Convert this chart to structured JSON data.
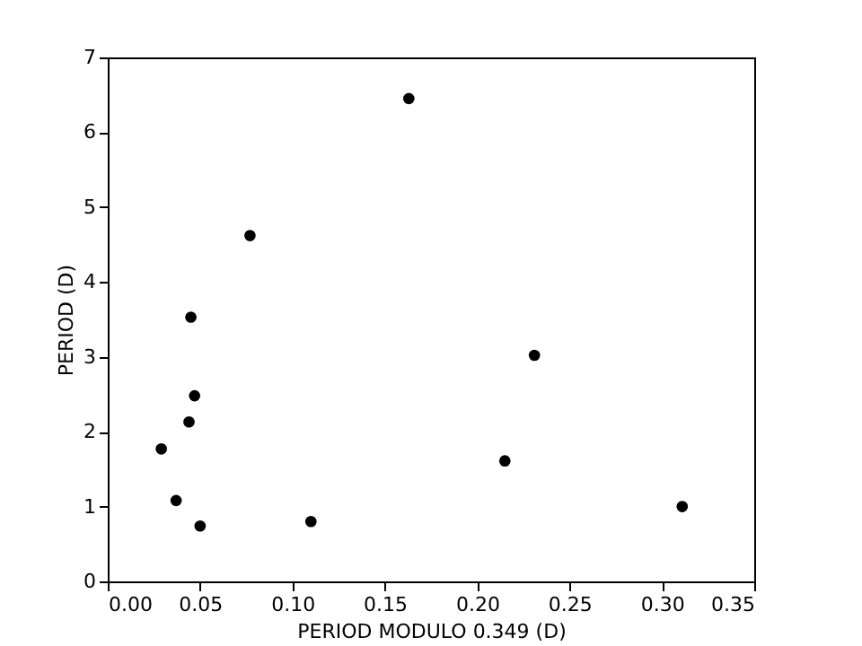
{
  "chart_data": {
    "type": "scatter",
    "xlabel": "PERIOD MODULO 0.349 (D)",
    "ylabel": "PERIOD (D)",
    "x": [
      0.163,
      0.077,
      0.045,
      0.047,
      0.044,
      0.029,
      0.037,
      0.05,
      0.11,
      0.231,
      0.215,
      0.311
    ],
    "series": [
      {
        "color": "#000000",
        "values": [
          6.45,
          4.62,
          3.53,
          2.48,
          2.13,
          1.77,
          1.08,
          0.74,
          0.8,
          3.02,
          1.61,
          1.0
        ]
      }
    ],
    "xlim": [
      0,
      0.35
    ],
    "xticks": [
      {
        "value": 0,
        "label": "0.00"
      },
      {
        "value": 0.05,
        "label": "0.05"
      },
      {
        "value": 0.1,
        "label": "0.10"
      },
      {
        "value": 0.15,
        "label": "0.15"
      },
      {
        "value": 0.2,
        "label": "0.20"
      },
      {
        "value": 0.25,
        "label": "0.25"
      },
      {
        "value": 0.3,
        "label": "0.30"
      },
      {
        "value": 0.35,
        "label": "0.35"
      }
    ],
    "ylim": [
      0,
      7
    ],
    "yticks": [
      0,
      1,
      2,
      3,
      4,
      5,
      6,
      7
    ],
    "marker": "circle",
    "grid": false
  }
}
